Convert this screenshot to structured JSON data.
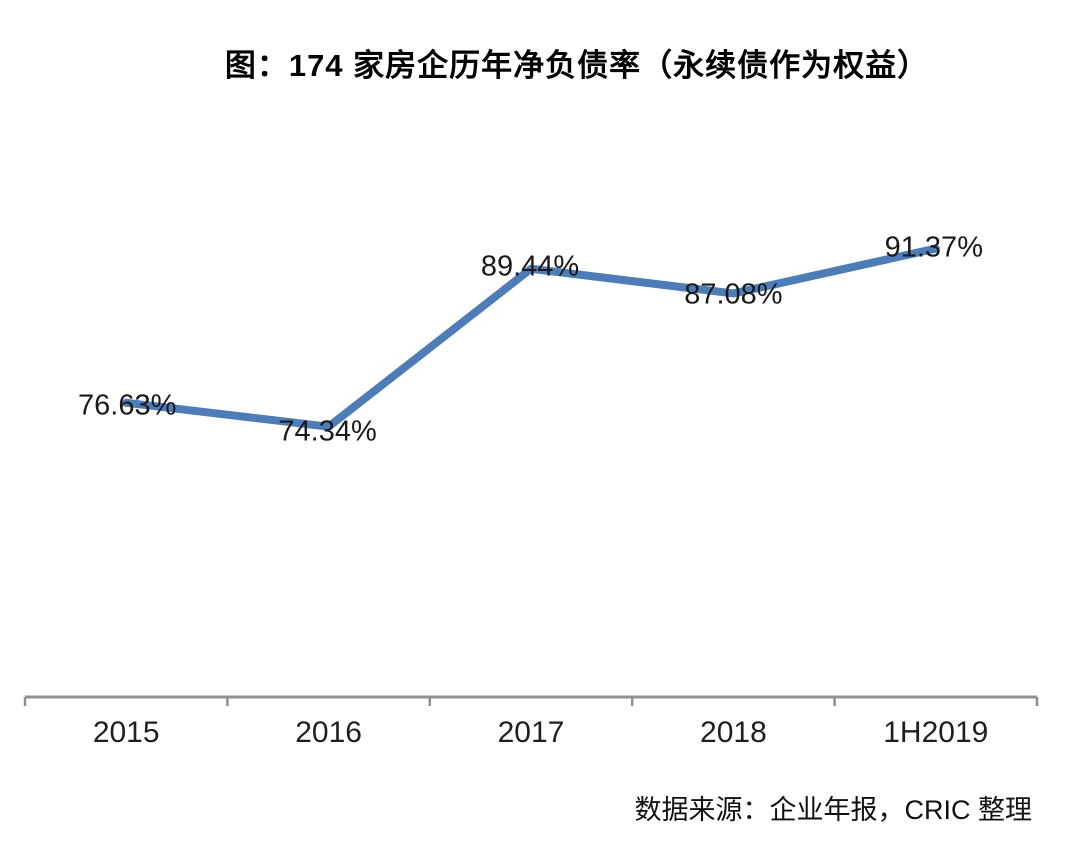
{
  "header": {
    "title": "图：174 家房企历年净负债率（永续债作为权益）"
  },
  "footer": {
    "source": "数据来源：企业年报，CRIC 整理"
  },
  "chart_data": {
    "type": "line",
    "title": "图：174 家房企历年净负债率（永续债作为权益）",
    "categories": [
      "2015",
      "2016",
      "2017",
      "2018",
      "1H2019"
    ],
    "values": [
      76.63,
      74.34,
      89.44,
      87.08,
      91.37
    ],
    "point_labels": [
      "76.63%",
      "74.34%",
      "89.44%",
      "87.08%",
      "91.37%"
    ],
    "unit": "%",
    "line_color": "#4d7cb7",
    "axis_color": "#8f8f8f",
    "label_color": "#1a1a1a",
    "ylim": [
      48.5,
      100
    ],
    "grid": false,
    "legend": false,
    "data_label_position": "center",
    "source": "数据来源：企业年报，CRIC 整理"
  }
}
